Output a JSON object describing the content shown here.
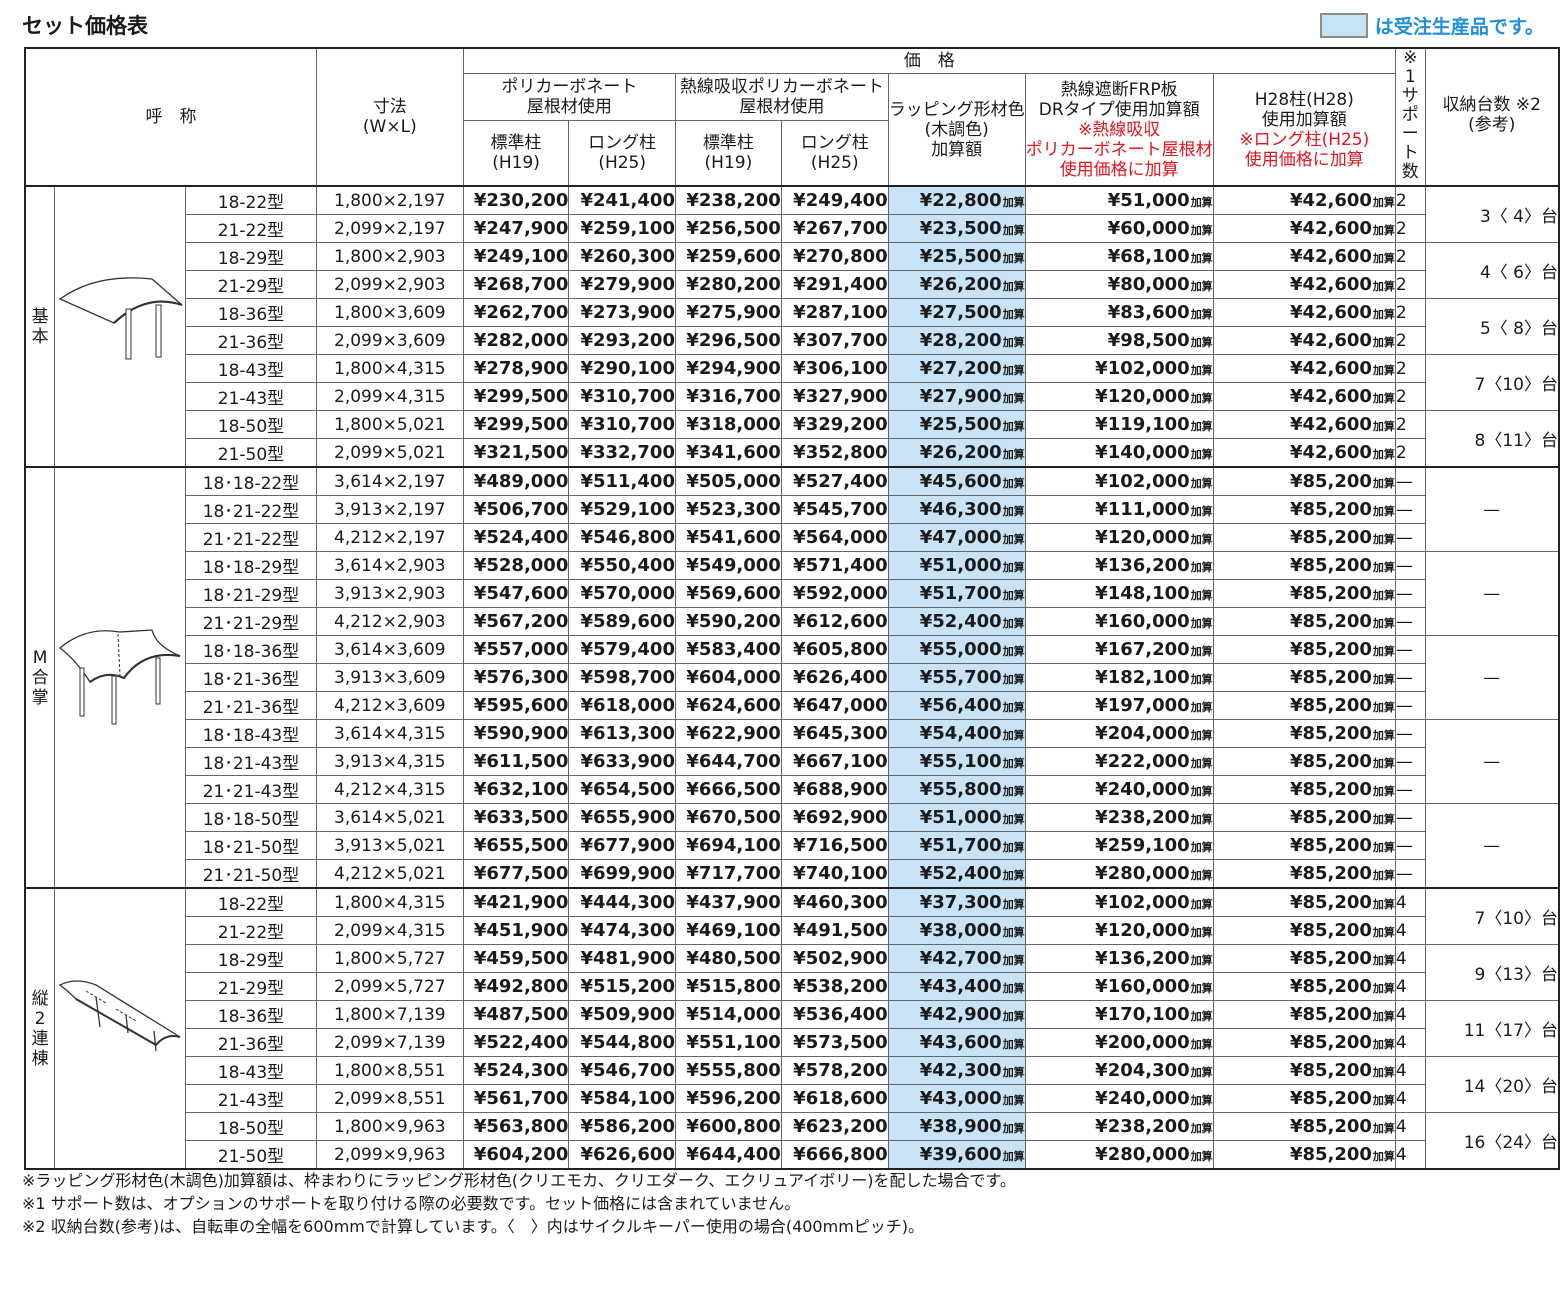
{
  "title": "セット価格表",
  "legend": "は受注生産品です。",
  "colors": {
    "highlight": "#c8e2f6",
    "legend_text": "#1f8fd6",
    "red_note": "#e0151d"
  },
  "header": {
    "name": "呼　称",
    "size_l1": "寸法",
    "size_l2": "(W×L)",
    "price": "価　格",
    "poly_l1": "ポリカーボネート",
    "poly_l2": "屋根材使用",
    "heat_l1": "熱線吸収ポリカーボネート",
    "heat_l2": "屋根材使用",
    "std_l1": "標準柱",
    "std_l2": "(H19)",
    "long_l1": "ロング柱",
    "long_l2": "(H25)",
    "wrap_l1": "ラッピング形材色",
    "wrap_l2": "(木調色)",
    "wrap_l3": "加算額",
    "frp_l1": "熱線遮断FRP板",
    "frp_l2": "DRタイプ使用加算額",
    "frp_r1": "※熱線吸収",
    "frp_r2": "ポリカーボネート屋根材",
    "frp_r3": "使用価格に加算",
    "h28_l1": "H28柱(H28)",
    "h28_l2": "使用加算額",
    "h28_r1": "※ロング柱(H25)",
    "h28_r2": "使用価格に加算",
    "support": "※1サポート数",
    "capacity_l1": "収納台数 ※2",
    "capacity_l2": "(参考)",
    "kasan": "加算"
  },
  "groups": [
    {
      "name": "基本",
      "icon": "carport-single-icon",
      "rows": [
        {
          "type": "18-22型",
          "size": "1,800×2,197",
          "p1": "¥230,200",
          "p2": "¥241,400",
          "p3": "¥238,200",
          "p4": "¥249,400",
          "wrap": "¥22,800",
          "frp": "¥51,000",
          "h28": "¥42,600",
          "support": "2"
        },
        {
          "type": "21-22型",
          "size": "2,099×2,197",
          "p1": "¥247,900",
          "p2": "¥259,100",
          "p3": "¥256,500",
          "p4": "¥267,700",
          "wrap": "¥23,500",
          "frp": "¥60,000",
          "h28": "¥42,600",
          "support": "2"
        },
        {
          "type": "18-29型",
          "size": "1,800×2,903",
          "p1": "¥249,100",
          "p2": "¥260,300",
          "p3": "¥259,600",
          "p4": "¥270,800",
          "wrap": "¥25,500",
          "frp": "¥68,100",
          "h28": "¥42,600",
          "support": "2"
        },
        {
          "type": "21-29型",
          "size": "2,099×2,903",
          "p1": "¥268,700",
          "p2": "¥279,900",
          "p3": "¥280,200",
          "p4": "¥291,400",
          "wrap": "¥26,200",
          "frp": "¥80,000",
          "h28": "¥42,600",
          "support": "2"
        },
        {
          "type": "18-36型",
          "size": "1,800×3,609",
          "p1": "¥262,700",
          "p2": "¥273,900",
          "p3": "¥275,900",
          "p4": "¥287,100",
          "wrap": "¥27,500",
          "frp": "¥83,600",
          "h28": "¥42,600",
          "support": "2"
        },
        {
          "type": "21-36型",
          "size": "2,099×3,609",
          "p1": "¥282,000",
          "p2": "¥293,200",
          "p3": "¥296,500",
          "p4": "¥307,700",
          "wrap": "¥28,200",
          "frp": "¥98,500",
          "h28": "¥42,600",
          "support": "2"
        },
        {
          "type": "18-43型",
          "size": "1,800×4,315",
          "p1": "¥278,900",
          "p2": "¥290,100",
          "p3": "¥294,900",
          "p4": "¥306,100",
          "wrap": "¥27,200",
          "frp": "¥102,000",
          "h28": "¥42,600",
          "support": "2"
        },
        {
          "type": "21-43型",
          "size": "2,099×4,315",
          "p1": "¥299,500",
          "p2": "¥310,700",
          "p3": "¥316,700",
          "p4": "¥327,900",
          "wrap": "¥27,900",
          "frp": "¥120,000",
          "h28": "¥42,600",
          "support": "2"
        },
        {
          "type": "18-50型",
          "size": "1,800×5,021",
          "p1": "¥299,500",
          "p2": "¥310,700",
          "p3": "¥318,000",
          "p4": "¥329,200",
          "wrap": "¥25,500",
          "frp": "¥119,100",
          "h28": "¥42,600",
          "support": "2"
        },
        {
          "type": "21-50型",
          "size": "2,099×5,021",
          "p1": "¥321,500",
          "p2": "¥332,700",
          "p3": "¥341,600",
          "p4": "¥352,800",
          "wrap": "¥26,200",
          "frp": "¥140,000",
          "h28": "¥42,600",
          "support": "2"
        }
      ],
      "capacity": [
        "3〈 4〉台",
        "4〈 6〉台",
        "5〈 8〉台",
        "7〈10〉台",
        "8〈11〉台"
      ],
      "cap_span": 2
    },
    {
      "name": "M合掌",
      "icon": "carport-m-gassho-icon",
      "rows": [
        {
          "type": "18･18-22型",
          "size": "3,614×2,197",
          "p1": "¥489,000",
          "p2": "¥511,400",
          "p3": "¥505,000",
          "p4": "¥527,400",
          "wrap": "¥45,600",
          "frp": "¥102,000",
          "h28": "¥85,200",
          "support": "—"
        },
        {
          "type": "18･21-22型",
          "size": "3,913×2,197",
          "p1": "¥506,700",
          "p2": "¥529,100",
          "p3": "¥523,300",
          "p4": "¥545,700",
          "wrap": "¥46,300",
          "frp": "¥111,000",
          "h28": "¥85,200",
          "support": "—"
        },
        {
          "type": "21･21-22型",
          "size": "4,212×2,197",
          "p1": "¥524,400",
          "p2": "¥546,800",
          "p3": "¥541,600",
          "p4": "¥564,000",
          "wrap": "¥47,000",
          "frp": "¥120,000",
          "h28": "¥85,200",
          "support": "—"
        },
        {
          "type": "18･18-29型",
          "size": "3,614×2,903",
          "p1": "¥528,000",
          "p2": "¥550,400",
          "p3": "¥549,000",
          "p4": "¥571,400",
          "wrap": "¥51,000",
          "frp": "¥136,200",
          "h28": "¥85,200",
          "support": "—"
        },
        {
          "type": "18･21-29型",
          "size": "3,913×2,903",
          "p1": "¥547,600",
          "p2": "¥570,000",
          "p3": "¥569,600",
          "p4": "¥592,000",
          "wrap": "¥51,700",
          "frp": "¥148,100",
          "h28": "¥85,200",
          "support": "—"
        },
        {
          "type": "21･21-29型",
          "size": "4,212×2,903",
          "p1": "¥567,200",
          "p2": "¥589,600",
          "p3": "¥590,200",
          "p4": "¥612,600",
          "wrap": "¥52,400",
          "frp": "¥160,000",
          "h28": "¥85,200",
          "support": "—"
        },
        {
          "type": "18･18-36型",
          "size": "3,614×3,609",
          "p1": "¥557,000",
          "p2": "¥579,400",
          "p3": "¥583,400",
          "p4": "¥605,800",
          "wrap": "¥55,000",
          "frp": "¥167,200",
          "h28": "¥85,200",
          "support": "—"
        },
        {
          "type": "18･21-36型",
          "size": "3,913×3,609",
          "p1": "¥576,300",
          "p2": "¥598,700",
          "p3": "¥604,000",
          "p4": "¥626,400",
          "wrap": "¥55,700",
          "frp": "¥182,100",
          "h28": "¥85,200",
          "support": "—"
        },
        {
          "type": "21･21-36型",
          "size": "4,212×3,609",
          "p1": "¥595,600",
          "p2": "¥618,000",
          "p3": "¥624,600",
          "p4": "¥647,000",
          "wrap": "¥56,400",
          "frp": "¥197,000",
          "h28": "¥85,200",
          "support": "—"
        },
        {
          "type": "18･18-43型",
          "size": "3,614×4,315",
          "p1": "¥590,900",
          "p2": "¥613,300",
          "p3": "¥622,900",
          "p4": "¥645,300",
          "wrap": "¥54,400",
          "frp": "¥204,000",
          "h28": "¥85,200",
          "support": "—"
        },
        {
          "type": "18･21-43型",
          "size": "3,913×4,315",
          "p1": "¥611,500",
          "p2": "¥633,900",
          "p3": "¥644,700",
          "p4": "¥667,100",
          "wrap": "¥55,100",
          "frp": "¥222,000",
          "h28": "¥85,200",
          "support": "—"
        },
        {
          "type": "21･21-43型",
          "size": "4,212×4,315",
          "p1": "¥632,100",
          "p2": "¥654,500",
          "p3": "¥666,500",
          "p4": "¥688,900",
          "wrap": "¥55,800",
          "frp": "¥240,000",
          "h28": "¥85,200",
          "support": "—"
        },
        {
          "type": "18･18-50型",
          "size": "3,614×5,021",
          "p1": "¥633,500",
          "p2": "¥655,900",
          "p3": "¥670,500",
          "p4": "¥692,900",
          "wrap": "¥51,000",
          "frp": "¥238,200",
          "h28": "¥85,200",
          "support": "—"
        },
        {
          "type": "18･21-50型",
          "size": "3,913×5,021",
          "p1": "¥655,500",
          "p2": "¥677,900",
          "p3": "¥694,100",
          "p4": "¥716,500",
          "wrap": "¥51,700",
          "frp": "¥259,100",
          "h28": "¥85,200",
          "support": "—"
        },
        {
          "type": "21･21-50型",
          "size": "4,212×5,021",
          "p1": "¥677,500",
          "p2": "¥699,900",
          "p3": "¥717,700",
          "p4": "¥740,100",
          "wrap": "¥52,400",
          "frp": "¥280,000",
          "h28": "¥85,200",
          "support": "—"
        }
      ],
      "capacity": [
        "—",
        "—",
        "—",
        "—",
        "—"
      ],
      "cap_span": 3
    },
    {
      "name": "縦2連棟",
      "icon": "carport-tandem-icon",
      "rows": [
        {
          "type": "18-22型",
          "size": "1,800×4,315",
          "p1": "¥421,900",
          "p2": "¥444,300",
          "p3": "¥437,900",
          "p4": "¥460,300",
          "wrap": "¥37,300",
          "frp": "¥102,000",
          "h28": "¥85,200",
          "support": "4"
        },
        {
          "type": "21-22型",
          "size": "2,099×4,315",
          "p1": "¥451,900",
          "p2": "¥474,300",
          "p3": "¥469,100",
          "p4": "¥491,500",
          "wrap": "¥38,000",
          "frp": "¥120,000",
          "h28": "¥85,200",
          "support": "4"
        },
        {
          "type": "18-29型",
          "size": "1,800×5,727",
          "p1": "¥459,500",
          "p2": "¥481,900",
          "p3": "¥480,500",
          "p4": "¥502,900",
          "wrap": "¥42,700",
          "frp": "¥136,200",
          "h28": "¥85,200",
          "support": "4"
        },
        {
          "type": "21-29型",
          "size": "2,099×5,727",
          "p1": "¥492,800",
          "p2": "¥515,200",
          "p3": "¥515,800",
          "p4": "¥538,200",
          "wrap": "¥43,400",
          "frp": "¥160,000",
          "h28": "¥85,200",
          "support": "4"
        },
        {
          "type": "18-36型",
          "size": "1,800×7,139",
          "p1": "¥487,500",
          "p2": "¥509,900",
          "p3": "¥514,000",
          "p4": "¥536,400",
          "wrap": "¥42,900",
          "frp": "¥170,100",
          "h28": "¥85,200",
          "support": "4"
        },
        {
          "type": "21-36型",
          "size": "2,099×7,139",
          "p1": "¥522,400",
          "p2": "¥544,800",
          "p3": "¥551,100",
          "p4": "¥573,500",
          "wrap": "¥43,600",
          "frp": "¥200,000",
          "h28": "¥85,200",
          "support": "4"
        },
        {
          "type": "18-43型",
          "size": "1,800×8,551",
          "p1": "¥524,300",
          "p2": "¥546,700",
          "p3": "¥555,800",
          "p4": "¥578,200",
          "wrap": "¥42,300",
          "frp": "¥204,300",
          "h28": "¥85,200",
          "support": "4"
        },
        {
          "type": "21-43型",
          "size": "2,099×8,551",
          "p1": "¥561,700",
          "p2": "¥584,100",
          "p3": "¥596,200",
          "p4": "¥618,600",
          "wrap": "¥43,000",
          "frp": "¥240,000",
          "h28": "¥85,200",
          "support": "4"
        },
        {
          "type": "18-50型",
          "size": "1,800×9,963",
          "p1": "¥563,800",
          "p2": "¥586,200",
          "p3": "¥600,800",
          "p4": "¥623,200",
          "wrap": "¥38,900",
          "frp": "¥238,200",
          "h28": "¥85,200",
          "support": "4"
        },
        {
          "type": "21-50型",
          "size": "2,099×9,963",
          "p1": "¥604,200",
          "p2": "¥626,600",
          "p3": "¥644,400",
          "p4": "¥666,800",
          "wrap": "¥39,600",
          "frp": "¥280,000",
          "h28": "¥85,200",
          "support": "4"
        }
      ],
      "capacity": [
        "7〈10〉台",
        "9〈13〉台",
        "11〈17〉台",
        "14〈20〉台",
        "16〈24〉台"
      ],
      "cap_span": 2
    }
  ],
  "notes": [
    "※ラッピング形材色(木調色)加算額は、枠まわりにラッピング形材色(クリエモカ、クリエダーク、エクリュアイボリー)を配した場合です。",
    "※1 サポート数は、オプションのサポートを取り付ける際の必要数です。セット価格には含まれていません。",
    "※2 収納台数(参考)は、自転車の全幅を600mmで計算しています。〈　〉内はサイクルキーパー使用の場合(400mmピッチ)。"
  ]
}
